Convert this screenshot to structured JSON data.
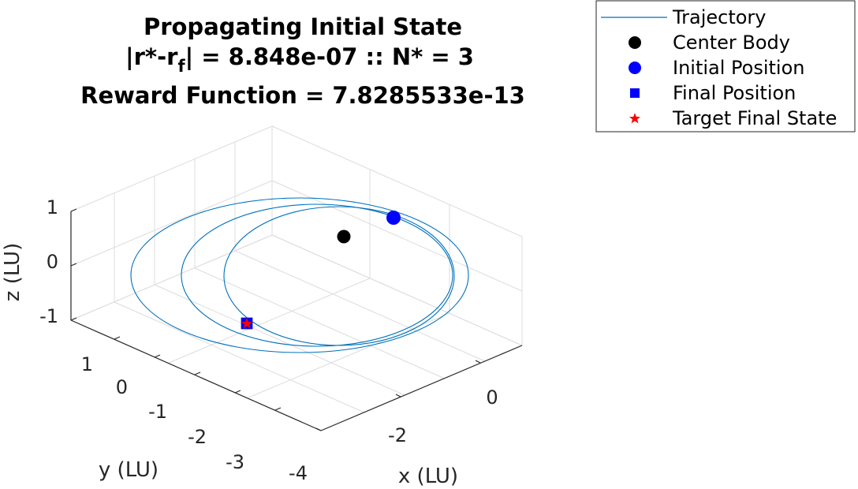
{
  "chart_data": {
    "type": "line3d",
    "title_line1": "Propagating Initial State",
    "title_line2_pre": "|r*-r",
    "title_line2_sub": "f",
    "title_line2_post": "| = 8.848e-07 :: N* = 3",
    "title_line3": "Reward Function = 7.8285533e-13",
    "xlabel": "x (LU)",
    "ylabel": "y (LU)",
    "zlabel": "z (LU)",
    "x_ticks": [
      "-4",
      "-2",
      "0"
    ],
    "y_ticks": [
      "1",
      "0",
      "-1",
      "-2",
      "-3"
    ],
    "z_ticks": [
      "1",
      "0",
      "-1"
    ],
    "grid": true,
    "legend_position": "outside-top-right",
    "legend": [
      {
        "label": "Trajectory",
        "marker": "line",
        "color": "#0072BD"
      },
      {
        "label": "Center Body",
        "marker": "circle",
        "color": "#000000"
      },
      {
        "label": "Initial Position",
        "marker": "circle",
        "color": "#0000FF"
      },
      {
        "label": "Final Position",
        "marker": "square",
        "color": "#0000FF"
      },
      {
        "label": "Target Final State",
        "marker": "star",
        "color": "#FF0000"
      }
    ],
    "series": [
      {
        "name": "Trajectory",
        "kind": "orbit",
        "revolutions": 3
      },
      {
        "name": "Center Body",
        "x": 0,
        "y": 0,
        "z": 0
      },
      {
        "name": "Initial Position",
        "x": 0.3,
        "y": 1.0,
        "z": 0.1
      },
      {
        "name": "Final Position",
        "x": -3.0,
        "y": -0.4,
        "z": -0.1
      },
      {
        "name": "Target Final State",
        "x": -3.0,
        "y": -0.4,
        "z": -0.1
      }
    ]
  }
}
